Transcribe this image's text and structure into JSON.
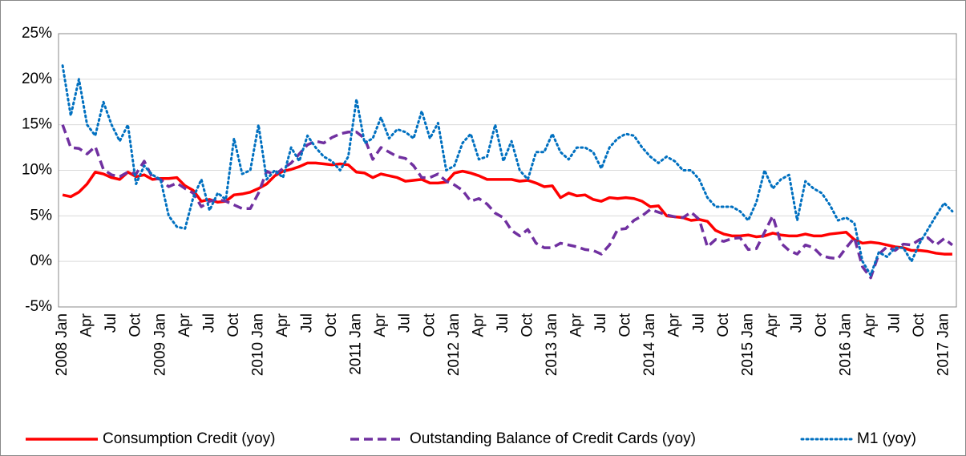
{
  "chart_data": {
    "type": "line",
    "categories": [
      "2008 Jan",
      null,
      null,
      "Apr",
      null,
      null,
      "Jul",
      null,
      null,
      "Oct",
      null,
      null,
      "2009 Jan",
      null,
      null,
      "Apr",
      null,
      null,
      "Jul",
      null,
      null,
      "Oct",
      null,
      null,
      "2010 Jan",
      null,
      null,
      "Apr",
      null,
      null,
      "Jul",
      null,
      null,
      "Oct",
      null,
      null,
      "2011 Jan",
      null,
      null,
      "Apr",
      null,
      null,
      "Jul",
      null,
      null,
      "Oct",
      null,
      null,
      "2012 Jan",
      null,
      null,
      "Apr",
      null,
      null,
      "Jul",
      null,
      null,
      "Oct",
      null,
      null,
      "2013 Jan",
      null,
      null,
      "Apr",
      null,
      null,
      "Jul",
      null,
      null,
      "Oct",
      null,
      null,
      "2014 Jan",
      null,
      null,
      "Apr",
      null,
      null,
      "Jul",
      null,
      null,
      "Oct",
      null,
      null,
      "2015 Jan",
      null,
      null,
      "Apr",
      null,
      null,
      "Jul",
      null,
      null,
      "Oct",
      null,
      null,
      "2016 Jan",
      null,
      null,
      "Apr",
      null,
      null,
      "Jul",
      null,
      null,
      "Oct",
      null,
      null,
      "2017 Jan",
      null
    ],
    "series": [
      {
        "name": "Consumption Credit (yoy)",
        "color": "#ff0000",
        "style": "solid",
        "values": [
          7.3,
          7.1,
          7.6,
          8.5,
          9.8,
          9.6,
          9.2,
          9.0,
          9.8,
          9.3,
          9.5,
          9.0,
          9.1,
          9.1,
          9.2,
          8.3,
          7.8,
          6.6,
          6.8,
          6.5,
          6.6,
          7.3,
          7.4,
          7.6,
          8.0,
          8.5,
          9.4,
          9.9,
          10.1,
          10.4,
          10.8,
          10.8,
          10.7,
          10.6,
          10.7,
          10.6,
          9.8,
          9.7,
          9.2,
          9.6,
          9.4,
          9.2,
          8.8,
          8.9,
          9.0,
          8.6,
          8.6,
          8.7,
          9.7,
          9.9,
          9.7,
          9.4,
          9.0,
          9.0,
          9.0,
          9.0,
          8.8,
          8.9,
          8.6,
          8.2,
          8.3,
          7.0,
          7.5,
          7.2,
          7.3,
          6.8,
          6.6,
          7.0,
          6.9,
          7.0,
          6.9,
          6.6,
          6.0,
          6.1,
          5.0,
          4.9,
          4.8,
          4.5,
          4.6,
          4.4,
          3.4,
          3.0,
          2.8,
          2.8,
          2.9,
          2.7,
          2.8,
          3.1,
          2.9,
          2.8,
          2.8,
          3.0,
          2.8,
          2.8,
          3.0,
          3.1,
          3.2,
          2.4,
          2.0,
          2.1,
          2.0,
          1.8,
          1.6,
          1.5,
          1.2,
          1.2,
          1.1,
          0.9,
          0.8,
          0.8
        ]
      },
      {
        "name": "Outstanding Balance of Credit Cards (yoy)",
        "color": "#7030a0",
        "style": "dashed",
        "values": [
          15.0,
          12.5,
          12.4,
          11.8,
          12.6,
          10.1,
          9.5,
          9.3,
          9.8,
          9.6,
          11.0,
          9.2,
          9.0,
          8.2,
          8.6,
          8.0,
          7.5,
          6.0,
          6.6,
          6.8,
          6.6,
          6.2,
          5.8,
          5.8,
          7.5,
          9.9,
          9.5,
          10.2,
          10.8,
          11.8,
          12.8,
          13.2,
          13.0,
          13.6,
          14.0,
          14.2,
          14.2,
          13.5,
          11.2,
          12.5,
          12.0,
          11.5,
          11.3,
          10.5,
          9.2,
          9.2,
          9.6,
          8.8,
          8.4,
          7.8,
          6.6,
          6.9,
          6.3,
          5.3,
          4.8,
          3.4,
          2.8,
          3.5,
          2.0,
          1.5,
          1.5,
          2.0,
          1.8,
          1.6,
          1.3,
          1.2,
          0.8,
          1.8,
          3.5,
          3.6,
          4.5,
          5.0,
          5.7,
          5.4,
          5.1,
          4.9,
          4.8,
          5.4,
          4.6,
          1.6,
          2.4,
          2.2,
          2.5,
          2.6,
          1.3,
          1.4,
          3.2,
          5.0,
          2.0,
          1.2,
          0.8,
          1.8,
          1.5,
          0.6,
          0.4,
          0.3,
          1.5,
          2.6,
          -0.6,
          -1.8,
          0.8,
          1.6,
          1.2,
          1.9,
          1.8,
          2.4,
          2.6,
          1.8,
          2.5,
          1.8
        ]
      },
      {
        "name": "M1 (yoy)",
        "color": "#0070c0",
        "style": "dotted",
        "values": [
          21.5,
          16.0,
          20.0,
          15.0,
          13.8,
          17.5,
          15.0,
          13.2,
          15.0,
          8.5,
          10.5,
          9.5,
          9.0,
          5.0,
          3.8,
          3.6,
          7.0,
          9.0,
          5.6,
          7.5,
          6.8,
          13.5,
          9.6,
          10.0,
          15.0,
          9.0,
          10.0,
          9.2,
          12.5,
          11.0,
          13.8,
          12.5,
          11.5,
          11.0,
          10.0,
          11.5,
          17.8,
          13.0,
          13.5,
          15.8,
          13.5,
          14.5,
          14.2,
          13.5,
          16.5,
          13.5,
          15.2,
          10.0,
          10.5,
          13.0,
          14.0,
          11.2,
          11.5,
          15.0,
          11.0,
          13.2,
          10.0,
          9.0,
          12.0,
          12.0,
          14.0,
          12.0,
          11.2,
          12.5,
          12.5,
          12.0,
          10.2,
          12.5,
          13.5,
          14.0,
          13.8,
          12.5,
          11.5,
          10.8,
          11.5,
          11.0,
          10.0,
          10.0,
          9.0,
          7.0,
          6.0,
          6.0,
          6.0,
          5.5,
          4.5,
          6.5,
          10.0,
          8.0,
          9.0,
          9.5,
          4.5,
          8.8,
          8.0,
          7.5,
          6.2,
          4.5,
          4.8,
          4.2,
          0.0,
          -1.5,
          1.0,
          0.5,
          1.5,
          1.5,
          0.0,
          2.0,
          3.5,
          5.0,
          6.4,
          5.5
        ]
      }
    ],
    "ylim": [
      -5,
      25
    ],
    "yticks": [
      {
        "value": -5,
        "label": "-5%"
      },
      {
        "value": 0,
        "label": "0%"
      },
      {
        "value": 5,
        "label": "5%"
      },
      {
        "value": 10,
        "label": "10%"
      },
      {
        "value": 15,
        "label": "15%"
      },
      {
        "value": 20,
        "label": "20%"
      },
      {
        "value": 25,
        "label": "25%"
      }
    ],
    "grid": true,
    "legend": "bottom"
  }
}
